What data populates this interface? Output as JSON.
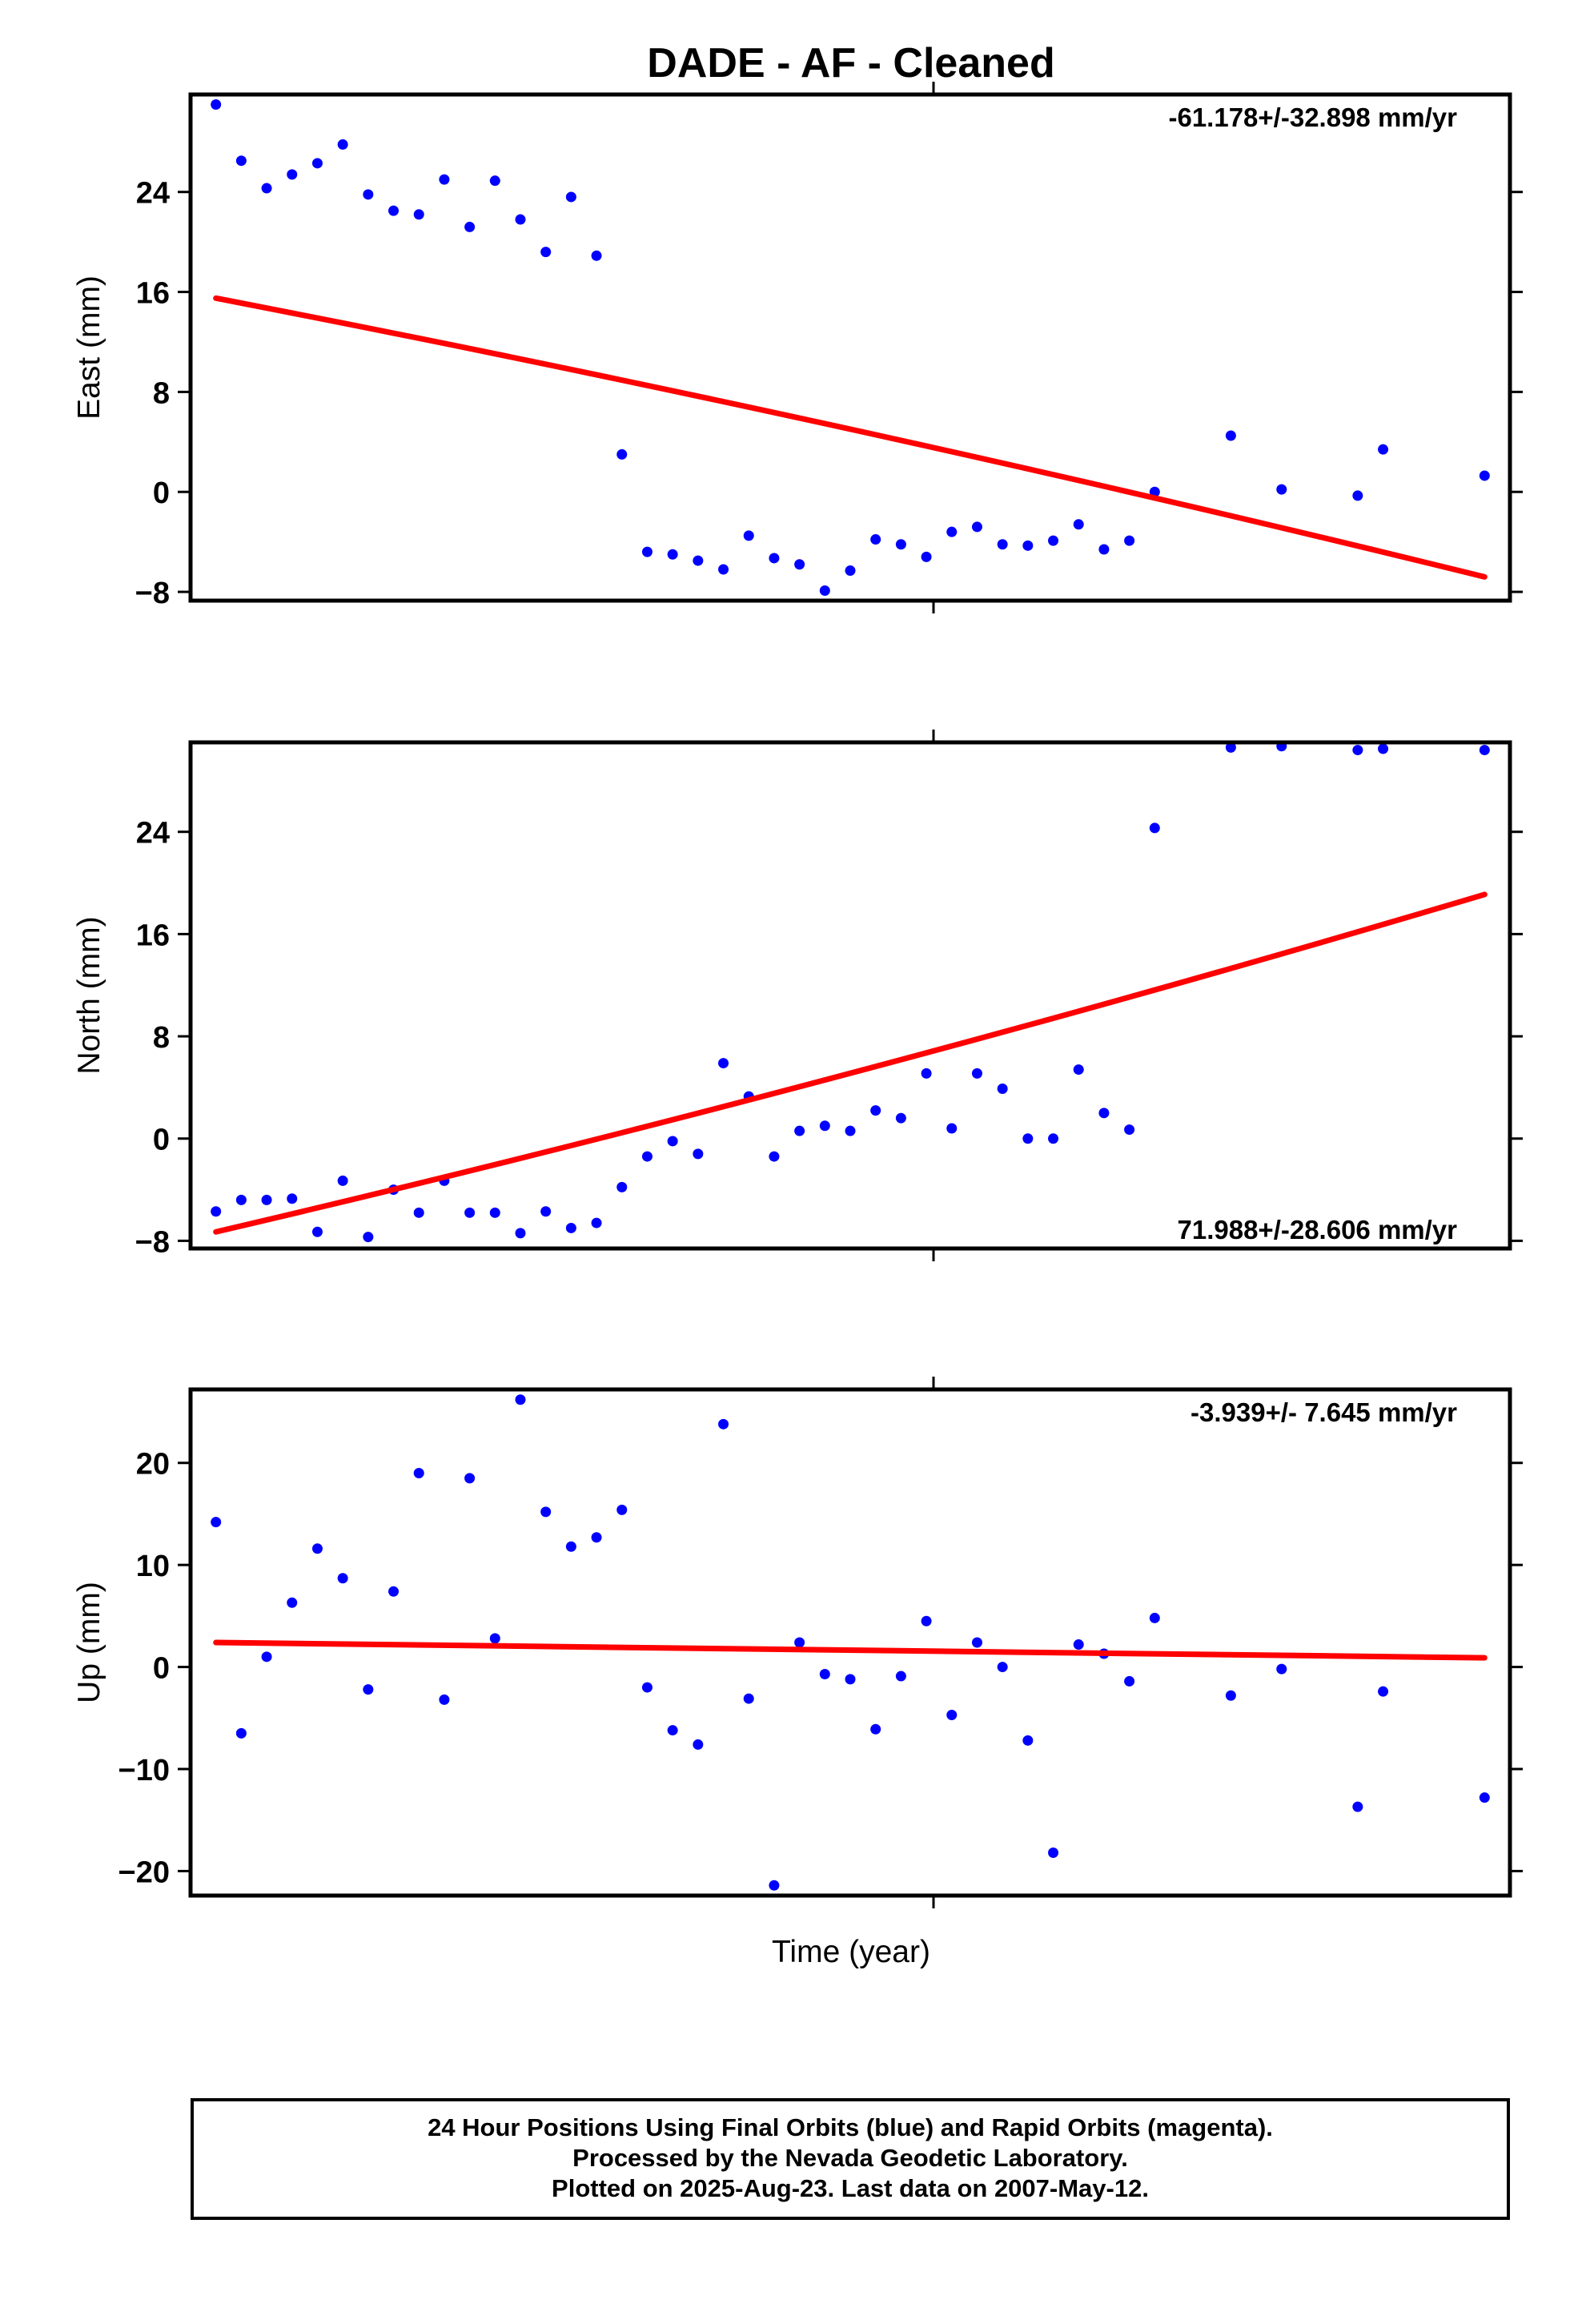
{
  "chart_data": {
    "type": "scatter",
    "title": "DADE  - AF - Cleaned",
    "xlabel": "Time (year)",
    "panels": [
      {
        "id": "east",
        "ylabel": "East (mm)",
        "ylim": [
          -8.7,
          31.8
        ],
        "yticks": [
          -8,
          0,
          8,
          16,
          24
        ],
        "ytick_labels": [
          "−8",
          "0",
          "8",
          "16",
          "24"
        ],
        "rate": "-61.178+/-32.898 mm/yr",
        "rate_position": "top-right",
        "trend": [
          15.5,
          -6.8
        ],
        "points": [
          [
            0,
            31.0
          ],
          [
            1,
            26.5
          ],
          [
            2,
            24.3
          ],
          [
            3,
            25.4
          ],
          [
            4,
            26.3
          ],
          [
            5,
            27.8
          ],
          [
            6,
            23.8
          ],
          [
            7,
            22.5
          ],
          [
            8,
            22.2
          ],
          [
            9,
            25.0
          ],
          [
            10,
            21.2
          ],
          [
            11,
            24.9
          ],
          [
            12,
            21.8
          ],
          [
            13,
            19.2
          ],
          [
            14,
            23.6
          ],
          [
            15,
            18.9
          ],
          [
            16,
            3.0
          ],
          [
            17,
            -4.8
          ],
          [
            18,
            -5.0
          ],
          [
            19,
            -5.5
          ],
          [
            20,
            -6.2
          ],
          [
            21,
            -3.5
          ],
          [
            22,
            -5.3
          ],
          [
            23,
            -5.8
          ],
          [
            24,
            -7.9
          ],
          [
            25,
            -6.3
          ],
          [
            26,
            -3.8
          ],
          [
            27,
            -4.2
          ],
          [
            28,
            -5.2
          ],
          [
            29,
            -3.2
          ],
          [
            30,
            -2.8
          ],
          [
            31,
            -4.2
          ],
          [
            32,
            -4.3
          ],
          [
            33,
            -3.9
          ],
          [
            34,
            -2.6
          ],
          [
            35,
            -4.6
          ],
          [
            36,
            -3.9
          ],
          [
            37,
            0.0
          ],
          [
            40,
            4.5
          ],
          [
            42,
            0.2
          ],
          [
            45,
            -0.3
          ],
          [
            46,
            3.4
          ],
          [
            50,
            1.3
          ]
        ]
      },
      {
        "id": "north",
        "ylabel": "North (mm)",
        "ylim": [
          -8.6,
          31.0
        ],
        "yticks": [
          -8,
          0,
          8,
          16,
          24
        ],
        "ytick_labels": [
          "−8",
          "0",
          "8",
          "16",
          "24"
        ],
        "rate": "71.988+/-28.606 mm/yr",
        "rate_position": "bottom-right",
        "trend": [
          -7.3,
          19.1
        ],
        "points": [
          [
            0,
            -5.7
          ],
          [
            1,
            -4.8
          ],
          [
            2,
            -4.8
          ],
          [
            3,
            -4.7
          ],
          [
            4,
            -7.3
          ],
          [
            5,
            -3.3
          ],
          [
            6,
            -7.7
          ],
          [
            7,
            -4.0
          ],
          [
            8,
            -5.8
          ],
          [
            9,
            -3.3
          ],
          [
            10,
            -5.8
          ],
          [
            11,
            -5.8
          ],
          [
            12,
            -7.4
          ],
          [
            13,
            -5.7
          ],
          [
            14,
            -7.0
          ],
          [
            15,
            -6.6
          ],
          [
            16,
            -3.8
          ],
          [
            17,
            -1.4
          ],
          [
            18,
            -0.2
          ],
          [
            19,
            -1.2
          ],
          [
            20,
            5.9
          ],
          [
            21,
            3.3
          ],
          [
            22,
            -1.4
          ],
          [
            23,
            0.6
          ],
          [
            24,
            1.0
          ],
          [
            25,
            0.6
          ],
          [
            26,
            2.2
          ],
          [
            27,
            1.6
          ],
          [
            28,
            5.1
          ],
          [
            29,
            0.8
          ],
          [
            30,
            5.1
          ],
          [
            31,
            3.9
          ],
          [
            32,
            0.0
          ],
          [
            33,
            0.0
          ],
          [
            34,
            5.4
          ],
          [
            35,
            2.0
          ],
          [
            36,
            0.7
          ],
          [
            37,
            24.3
          ],
          [
            40,
            30.6
          ],
          [
            42,
            30.7
          ],
          [
            45,
            30.4
          ],
          [
            46,
            30.5
          ],
          [
            50,
            30.4
          ]
        ]
      },
      {
        "id": "up",
        "ylabel": "Up (mm)",
        "ylim": [
          -22.4,
          27.2
        ],
        "yticks": [
          -20,
          -10,
          0,
          10,
          20
        ],
        "ytick_labels": [
          "−20",
          "−10",
          "0",
          "10",
          "20"
        ],
        "rate": "-3.939+/- 7.645 mm/yr",
        "rate_position": "top-right",
        "trend": [
          2.4,
          0.9
        ],
        "points": [
          [
            0,
            14.2
          ],
          [
            1,
            -6.5
          ],
          [
            2,
            1.0
          ],
          [
            3,
            6.3
          ],
          [
            4,
            11.6
          ],
          [
            5,
            8.7
          ],
          [
            6,
            -2.2
          ],
          [
            7,
            7.4
          ],
          [
            8,
            19.0
          ],
          [
            9,
            -3.2
          ],
          [
            10,
            18.5
          ],
          [
            11,
            2.8
          ],
          [
            12,
            26.2
          ],
          [
            13,
            15.2
          ],
          [
            14,
            11.8
          ],
          [
            15,
            12.7
          ],
          [
            16,
            15.4
          ],
          [
            17,
            -2.0
          ],
          [
            18,
            -6.2
          ],
          [
            19,
            -7.6
          ],
          [
            20,
            23.8
          ],
          [
            21,
            -3.1
          ],
          [
            22,
            -21.4
          ],
          [
            23,
            2.4
          ],
          [
            24,
            -0.7
          ],
          [
            25,
            -1.2
          ],
          [
            26,
            -6.1
          ],
          [
            27,
            -0.9
          ],
          [
            28,
            4.5
          ],
          [
            29,
            -4.7
          ],
          [
            30,
            2.4
          ],
          [
            31,
            0.0
          ],
          [
            32,
            -7.2
          ],
          [
            33,
            -18.2
          ],
          [
            34,
            2.2
          ],
          [
            35,
            1.3
          ],
          [
            36,
            -1.4
          ],
          [
            37,
            4.8
          ],
          [
            40,
            -2.8
          ],
          [
            42,
            -0.2
          ],
          [
            45,
            -13.7
          ],
          [
            46,
            -2.4
          ],
          [
            50,
            -12.8
          ]
        ]
      }
    ],
    "colors": {
      "points": "#0000ff",
      "trend": "#ff0000",
      "frame": "#000000"
    }
  },
  "footer": {
    "line1": "24 Hour Positions Using Final Orbits (blue) and Rapid Orbits (magenta).",
    "line2": "Processed by the Nevada Geodetic Laboratory.",
    "line3": "Plotted on 2025-Aug-23. Last data on 2007-May-12."
  }
}
